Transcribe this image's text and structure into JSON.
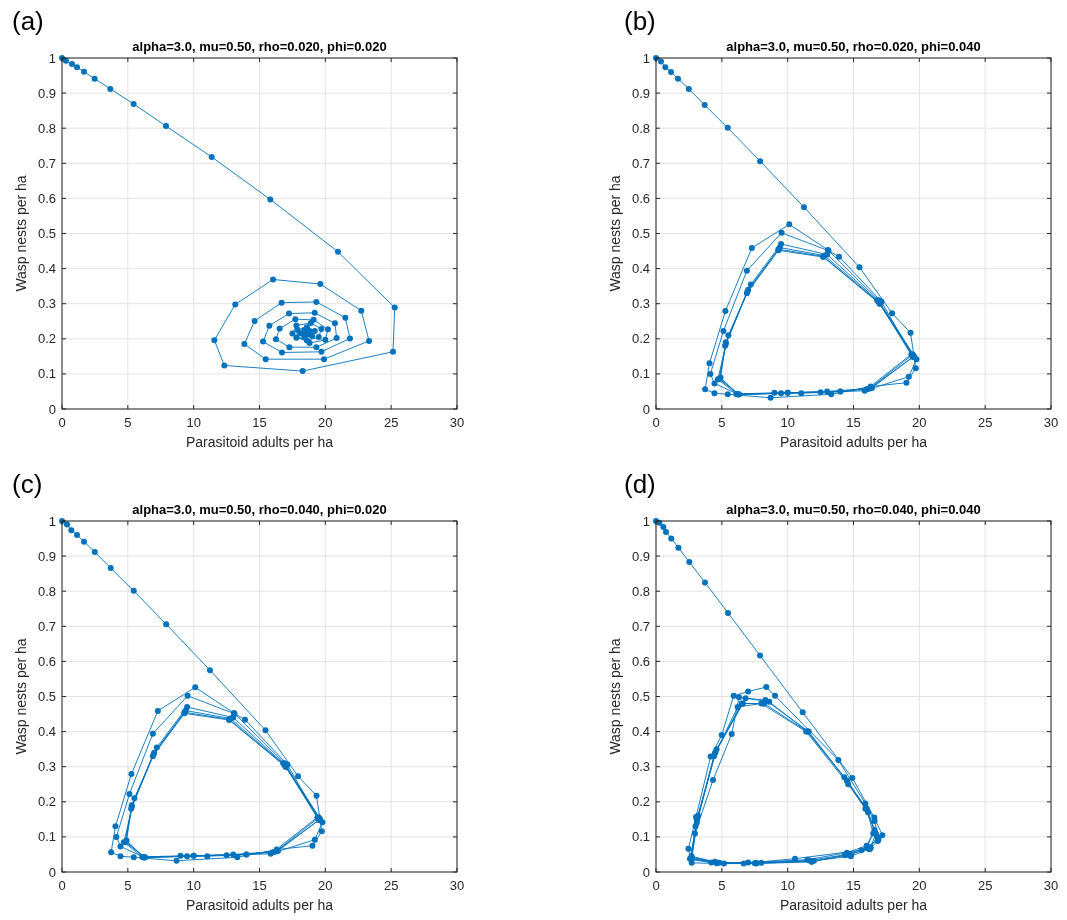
{
  "chart_data": [
    {
      "type": "line",
      "title": "alpha=3.0, mu=0.50, rho=0.020, phi=0.020",
      "xlabel": "Parasitoid adults per ha",
      "ylabel": "Wasp nests per ha",
      "annotations": [
        "(a)"
      ],
      "xlim": [
        0,
        30
      ],
      "ylim": [
        0,
        1
      ],
      "xticks": [
        0,
        5,
        10,
        15,
        20,
        25,
        30
      ],
      "yticks": [
        0,
        0.1,
        0.2,
        0.3,
        0.4,
        0.5,
        0.6,
        0.7,
        0.8,
        0.9,
        1
      ],
      "grid": true,
      "marker": "circle",
      "line_style": "solid",
      "series": [
        {
          "color": "#0072bd",
          "x": [
            0,
            0.3,
            0.76,
            1.14,
            1.67,
            2.48,
            3.67,
            5.44,
            7.9,
            11.37,
            15.82,
            20.96,
            25.27,
            25.14,
            18.28,
            12.33,
            11.57,
            13.16,
            16.03,
            19.62,
            22.73,
            23.32,
            19.9,
            15.47,
            13.85,
            14.63,
            16.68,
            19.32,
            21.52,
            21.87,
            19.7,
            16.71,
            15.27,
            15.75,
            17.24,
            19.19,
            20.73,
            20.86,
            19.32,
            17.27,
            16.25,
            16.53,
            17.72,
            19.11,
            20.2,
            20.0,
            18.8,
            17.5,
            17.8,
            18.9,
            19.7,
            19.5,
            18.6,
            17.8,
            17.9,
            18.6,
            19.2,
            19.0,
            18.4,
            18.1,
            18.4,
            18.8,
            18.7,
            18.4
          ],
          "values": [
            1,
            0.992,
            0.983,
            0.974,
            0.961,
            0.941,
            0.912,
            0.869,
            0.806,
            0.718,
            0.597,
            0.448,
            0.289,
            0.163,
            0.108,
            0.124,
            0.196,
            0.298,
            0.369,
            0.356,
            0.28,
            0.194,
            0.142,
            0.142,
            0.185,
            0.251,
            0.303,
            0.305,
            0.26,
            0.201,
            0.163,
            0.161,
            0.192,
            0.237,
            0.272,
            0.274,
            0.244,
            0.202,
            0.176,
            0.176,
            0.199,
            0.229,
            0.256,
            0.254,
            0.227,
            0.197,
            0.188,
            0.215,
            0.238,
            0.245,
            0.228,
            0.205,
            0.195,
            0.203,
            0.225,
            0.233,
            0.222,
            0.208,
            0.205,
            0.215,
            0.225,
            0.222,
            0.212,
            0.216
          ]
        }
      ]
    },
    {
      "type": "line",
      "title": "alpha=3.0, mu=0.50, rho=0.020, phi=0.040",
      "xlabel": "Parasitoid adults per ha",
      "ylabel": "Wasp nests per ha",
      "annotations": [
        "(b)"
      ],
      "xlim": [
        0,
        30
      ],
      "ylim": [
        0,
        1
      ],
      "xticks": [
        0,
        5,
        10,
        15,
        20,
        25,
        30
      ],
      "yticks": [
        0,
        0.1,
        0.2,
        0.3,
        0.4,
        0.5,
        0.6,
        0.7,
        0.8,
        0.9,
        1
      ],
      "grid": true,
      "marker": "circle",
      "line_style": "solid",
      "series": [
        {
          "color": "#0072bd",
          "x": [
            0,
            0.38,
            0.71,
            1.14,
            1.67,
            2.49,
            3.7,
            5.45,
            7.91,
            11.24,
            15.45,
            17.93,
            19.33,
            19.73,
            19.02,
            16.31,
            13.31,
            8.7,
            5.45,
            4.44,
            3.73,
            4.06,
            5.27,
            7.28,
            10.12,
            13.06,
            16.9,
            19.78,
            19.2,
            15.85,
            11.03,
            6.21,
            4.44,
            4.13,
            5.12,
            6.9,
            9.54,
            13.1,
            13.9,
            17.12,
            19.4,
            16.0,
            12.5,
            9.0,
            6.1,
            4.7,
            5.5,
            7.2,
            9.5,
            13.0,
            16.8,
            19.5,
            16.2,
            13,
            9.5,
            6.2,
            4.9,
            5.3,
            7.0,
            9.4,
            12.8,
            16.9,
            19.6,
            16.3,
            14,
            10,
            6.3,
            4.85,
            5.3,
            6.95,
            9.3,
            12.7,
            17,
            19.5,
            16.4,
            14,
            10,
            6.3,
            4.8,
            5.25,
            6.9,
            9.3,
            12.7,
            17,
            19.5
          ],
          "values": [
            1,
            0.99,
            0.974,
            0.96,
            0.941,
            0.912,
            0.866,
            0.801,
            0.706,
            0.575,
            0.404,
            0.273,
            0.217,
            0.116,
            0.075,
            0.064,
            0.042,
            0.032,
            0.042,
            0.045,
            0.056,
            0.13,
            0.279,
            0.459,
            0.526,
            0.453,
            0.31,
            0.142,
            0.092,
            0.052,
            0.045,
            0.042,
            0.073,
            0.1,
            0.222,
            0.394,
            0.502,
            0.451,
            0.434,
            0.306,
            0.156,
            0.056,
            0.048,
            0.046,
            0.043,
            0.085,
            0.21,
            0.355,
            0.47,
            0.44,
            0.31,
            0.155,
            0.058,
            0.05,
            0.045,
            0.042,
            0.09,
            0.19,
            0.34,
            0.46,
            0.437,
            0.305,
            0.15,
            0.06,
            0.05,
            0.046,
            0.041,
            0.087,
            0.185,
            0.335,
            0.455,
            0.435,
            0.3,
            0.148,
            0.06,
            0.05,
            0.046,
            0.042,
            0.085,
            0.18,
            0.33,
            0.452,
            0.433,
            0.3,
            0.15
          ]
        }
      ]
    },
    {
      "type": "line",
      "title": "alpha=3.0, mu=0.50, rho=0.040, phi=0.020",
      "xlabel": "Parasitoid adults per ha",
      "ylabel": "Wasp nests per ha",
      "annotations": [
        "(c)"
      ],
      "xlim": [
        0,
        30
      ],
      "ylim": [
        0,
        1
      ],
      "xticks": [
        0,
        5,
        10,
        15,
        20,
        25,
        30
      ],
      "yticks": [
        0,
        0.1,
        0.2,
        0.3,
        0.4,
        0.5,
        0.6,
        0.7,
        0.8,
        0.9,
        1
      ],
      "grid": true,
      "marker": "circle",
      "line_style": "solid",
      "series": [
        {
          "color": "#0072bd",
          "x": [
            0,
            0.38,
            0.71,
            1.14,
            1.67,
            2.49,
            3.7,
            5.45,
            7.91,
            11.24,
            15.45,
            17.93,
            19.33,
            19.73,
            19.02,
            16.31,
            13.31,
            8.7,
            5.45,
            4.44,
            3.73,
            4.06,
            5.27,
            7.28,
            10.12,
            13.06,
            16.9,
            19.78,
            19.2,
            15.85,
            11.03,
            6.21,
            4.44,
            4.13,
            5.12,
            6.9,
            9.54,
            13.1,
            13.9,
            17.12,
            19.4,
            16.0,
            12.5,
            9.0,
            6.1,
            4.7,
            5.5,
            7.2,
            9.5,
            13.0,
            16.8,
            19.5,
            16.2,
            13,
            9.5,
            6.2,
            4.9,
            5.3,
            7.0,
            9.4,
            12.8,
            16.9,
            19.6,
            16.3,
            14,
            10,
            6.3,
            4.85,
            5.3,
            6.95,
            9.3,
            12.7,
            17,
            19.5,
            16.4,
            14,
            10,
            6.3,
            4.8,
            5.25,
            6.9,
            9.3,
            12.7,
            17,
            19.5
          ],
          "values": [
            1,
            0.99,
            0.974,
            0.96,
            0.941,
            0.912,
            0.866,
            0.801,
            0.706,
            0.575,
            0.404,
            0.273,
            0.217,
            0.116,
            0.075,
            0.064,
            0.042,
            0.032,
            0.042,
            0.045,
            0.056,
            0.13,
            0.279,
            0.459,
            0.526,
            0.453,
            0.31,
            0.142,
            0.092,
            0.052,
            0.045,
            0.042,
            0.073,
            0.1,
            0.222,
            0.394,
            0.502,
            0.451,
            0.434,
            0.306,
            0.156,
            0.056,
            0.048,
            0.046,
            0.043,
            0.085,
            0.21,
            0.355,
            0.47,
            0.44,
            0.31,
            0.155,
            0.058,
            0.05,
            0.045,
            0.042,
            0.09,
            0.19,
            0.34,
            0.46,
            0.437,
            0.305,
            0.15,
            0.06,
            0.05,
            0.046,
            0.041,
            0.087,
            0.185,
            0.335,
            0.455,
            0.435,
            0.3,
            0.148,
            0.06,
            0.05,
            0.046,
            0.042,
            0.085,
            0.18,
            0.33,
            0.452,
            0.433,
            0.3,
            0.15
          ]
        }
      ]
    },
    {
      "type": "line",
      "title": "alpha=3.0, mu=0.50, rho=0.040, phi=0.040",
      "xlabel": "Parasitoid adults per ha",
      "ylabel": "Wasp nests per ha",
      "annotations": [
        "(d)"
      ],
      "xlim": [
        0,
        30
      ],
      "ylim": [
        0,
        1
      ],
      "xticks": [
        0,
        5,
        10,
        15,
        20,
        25,
        30
      ],
      "yticks": [
        0,
        0.1,
        0.2,
        0.3,
        0.4,
        0.5,
        0.6,
        0.7,
        0.8,
        0.9,
        1
      ],
      "grid": true,
      "marker": "circle",
      "line_style": "solid",
      "series": [
        {
          "color": "#0072bd",
          "x": [
            0,
            0.25,
            0.56,
            0.76,
            1.16,
            1.7,
            2.53,
            3.72,
            5.47,
            7.9,
            11.14,
            14.91,
            16.58,
            17.19,
            16.84,
            16.28,
            14.35,
            11.82,
            7.62,
            5.16,
            2.71,
            2.46,
            3.04,
            4.15,
            4.99,
            5.9,
            7.0,
            8.38,
            9.04,
            13.85,
            15.9,
            16.6,
            16.9,
            15.6,
            10.56,
            6.66,
            4.48,
            2.58,
            2.96,
            4.33,
            5.75,
            6.3,
            8.6,
            11.5,
            14.3,
            15.9,
            16.7,
            16.3,
            14.8,
            11.8,
            7.5,
            4.6,
            2.7,
            3.2,
            4.6,
            6.8,
            8.3,
            11.6,
            14.5,
            16.0,
            16.6,
            16.0,
            14.5,
            11.5,
            7.0,
            4.2,
            2.65,
            3.0,
            4.4,
            6.2,
            8.0,
            11.4,
            14.6,
            16.1,
            16.8,
            16.2,
            14.8,
            12,
            8,
            4.8,
            2.7,
            3.1,
            4.5,
            6.5,
            8.2,
            11.5,
            14.5,
            16.0,
            16.5,
            16.0,
            14.5,
            11.7,
            7.6,
            4.6,
            2.7,
            3.1,
            4.5,
            6.6,
            8.2
          ],
          "values": [
            1,
            0.995,
            0.983,
            0.969,
            0.95,
            0.924,
            0.883,
            0.825,
            0.738,
            0.617,
            0.455,
            0.268,
            0.155,
            0.105,
            0.088,
            0.067,
            0.048,
            0.029,
            0.024,
            0.024,
            0.026,
            0.066,
            0.157,
            0.329,
            0.39,
            0.502,
            0.514,
            0.527,
            0.502,
            0.319,
            0.195,
            0.145,
            0.092,
            0.062,
            0.038,
            0.024,
            0.029,
            0.038,
            0.11,
            0.262,
            0.393,
            0.498,
            0.485,
            0.4,
            0.27,
            0.18,
            0.11,
            0.07,
            0.05,
            0.03,
            0.025,
            0.025,
            0.035,
            0.16,
            0.35,
            0.495,
            0.49,
            0.4,
            0.26,
            0.18,
            0.12,
            0.075,
            0.055,
            0.035,
            0.027,
            0.027,
            0.04,
            0.13,
            0.33,
            0.47,
            0.48,
            0.4,
            0.25,
            0.17,
            0.1,
            0.065,
            0.045,
            0.032,
            0.026,
            0.026,
            0.045,
            0.15,
            0.34,
            0.48,
            0.48,
            0.4,
            0.26,
            0.18,
            0.11,
            0.07,
            0.05,
            0.033,
            0.026,
            0.027,
            0.042,
            0.14,
            0.34,
            0.48,
            0.48
          ]
        }
      ]
    }
  ]
}
